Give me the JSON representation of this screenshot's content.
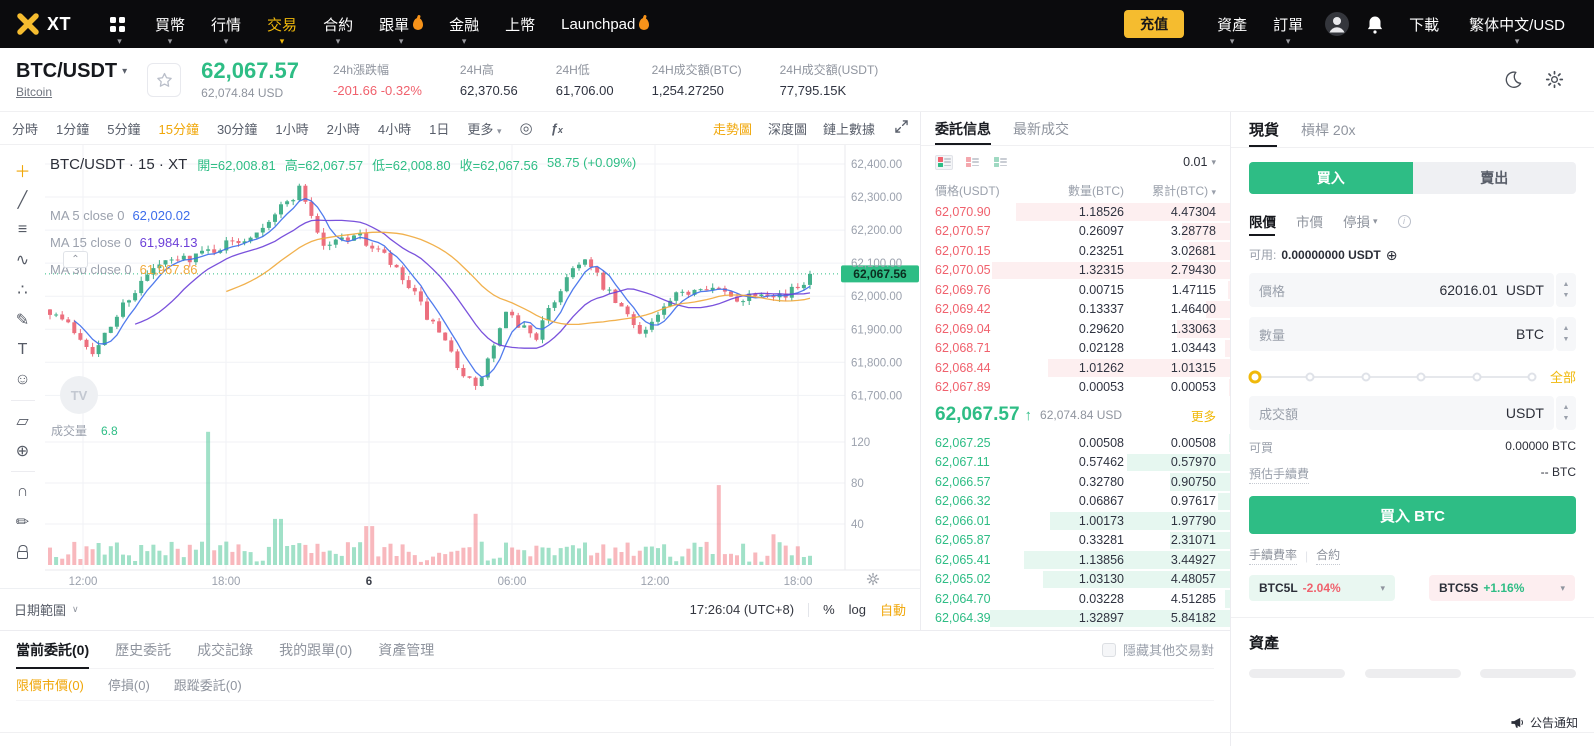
{
  "colors": {
    "up": "#2EBD85",
    "down": "#F0616D",
    "accent": "#F0B90B",
    "accent_text": "#F0A70A"
  },
  "nav": {
    "logo_text": "XT",
    "menu": [
      {
        "label": "買幣",
        "caret": true
      },
      {
        "label": "行情",
        "caret": true
      },
      {
        "label": "交易",
        "caret": true,
        "active": true
      },
      {
        "label": "合約",
        "caret": true
      },
      {
        "label": "跟單",
        "caret": true,
        "flame": true
      },
      {
        "label": "金融",
        "caret": true
      },
      {
        "label": "上幣"
      },
      {
        "label": "Launchpad",
        "flame": true
      }
    ],
    "deposit_label": "充值",
    "right_menu": [
      {
        "label": "資產",
        "caret": true
      },
      {
        "label": "訂單",
        "caret": true
      }
    ],
    "download_label": "下載",
    "locale_label": "繁体中文/USD"
  },
  "ticker": {
    "pair": "BTC/USDT",
    "coin_name": "Bitcoin",
    "price": "62,067.57",
    "price_usd": "62,074.84 USD",
    "stats": [
      {
        "label": "24h漲跌幅",
        "value": "-201.66 -0.32%",
        "dir": "down"
      },
      {
        "label": "24H高",
        "value": "62,370.56"
      },
      {
        "label": "24H低",
        "value": "61,706.00"
      },
      {
        "label": "24H成交額(BTC)",
        "value": "1,254.27250"
      },
      {
        "label": "24H成交額(USDT)",
        "value": "77,795.15K"
      }
    ]
  },
  "chart_toolbar": {
    "intervals": [
      "分時",
      "1分鐘",
      "5分鐘",
      "15分鐘",
      "30分鐘",
      "1小時",
      "2小時",
      "4小時",
      "1日"
    ],
    "active_interval": "15分鐘",
    "more_label": "更多",
    "modes": [
      "走勢圖",
      "深度圖",
      "鏈上數據"
    ],
    "active_mode": "走勢圖"
  },
  "chart": {
    "symbol_line": "BTC/USDT · 15 · XT",
    "ohlc_parts": [
      "開=62,008.81",
      "高=62,067.57",
      "低=62,008.80",
      "收=62,067.56",
      "58.75 (+0.09%)"
    ],
    "ma": [
      {
        "label": "MA 5 close 0",
        "value": "62,020.02",
        "color": "#3D6DEB"
      },
      {
        "label": "MA 15 close 0",
        "value": "61,984.13",
        "color": "#6C3FD8"
      },
      {
        "label": "MA 30 close 0",
        "value": "61,967.86",
        "color": "#F0A93B"
      }
    ],
    "volume_label": "成交量",
    "volume_value": "6.8",
    "current_price": "62,067.56",
    "price_axis": [
      "62,400.00",
      "62,300.00",
      "62,200.00",
      "62,100.00",
      "62,000.00",
      "61,900.00",
      "61,800.00",
      "61,700.00"
    ],
    "volume_axis": [
      "120",
      "80",
      "40"
    ],
    "time_axis": [
      "12:00",
      "18:00",
      "6",
      "06:00",
      "12:00",
      "18:00"
    ],
    "keypoints": [
      [
        0.0,
        61960
      ],
      [
        0.03,
        61900
      ],
      [
        0.06,
        61830
      ],
      [
        0.1,
        61990
      ],
      [
        0.14,
        62090
      ],
      [
        0.2,
        62130
      ],
      [
        0.26,
        62180
      ],
      [
        0.31,
        62280
      ],
      [
        0.33,
        62330
      ],
      [
        0.36,
        62150
      ],
      [
        0.4,
        62190
      ],
      [
        0.44,
        62120
      ],
      [
        0.48,
        62000
      ],
      [
        0.52,
        61850
      ],
      [
        0.56,
        61715
      ],
      [
        0.6,
        61940
      ],
      [
        0.64,
        61880
      ],
      [
        0.68,
        62060
      ],
      [
        0.7,
        62120
      ],
      [
        0.74,
        61990
      ],
      [
        0.78,
        61890
      ],
      [
        0.82,
        61990
      ],
      [
        0.86,
        62040
      ],
      [
        0.9,
        61990
      ],
      [
        0.94,
        62020
      ],
      [
        0.97,
        62000
      ],
      [
        1.0,
        62067
      ]
    ],
    "vol_spikes": [
      [
        0.207,
        130
      ],
      [
        0.3,
        45
      ],
      [
        0.42,
        38
      ],
      [
        0.56,
        50
      ],
      [
        0.878,
        78
      ],
      [
        0.95,
        30
      ]
    ],
    "bottom_bar": {
      "range_label": "日期範圍",
      "time": "17:26:04 (UTC+8)",
      "percent": "%",
      "log": "log",
      "auto": "自動"
    },
    "tools": [
      "crosshair-icon",
      "trendline-icon",
      "horizontal-lines-icon",
      "xabcd-pattern-icon",
      "long-position-icon",
      "brush-icon",
      "text-icon",
      "emoji-icon",
      "|",
      "ruler-icon",
      "zoom-in-icon",
      "|",
      "magnet-icon",
      "drawing-lock-icon",
      "lock-icon"
    ],
    "watermark": "TV"
  },
  "order_book": {
    "tabs": [
      "委託信息",
      "最新成交"
    ],
    "active_tab": "委託信息",
    "precision": "0.01",
    "columns": [
      "價格(USDT)",
      "數量(BTC)",
      "累計(BTC)"
    ],
    "asks": [
      {
        "price": "62,070.90",
        "qty": "1.18526",
        "total": "4.47304",
        "depth": 0.89
      },
      {
        "price": "62,070.57",
        "qty": "0.26097",
        "total": "3.28778",
        "depth": 0.2
      },
      {
        "price": "62,070.15",
        "qty": "0.23251",
        "total": "3.02681",
        "depth": 0.17
      },
      {
        "price": "62,070.05",
        "qty": "1.32315",
        "total": "2.79430",
        "depth": 0.99
      },
      {
        "price": "62,069.76",
        "qty": "0.00715",
        "total": "1.47115",
        "depth": 0.01
      },
      {
        "price": "62,069.42",
        "qty": "0.13337",
        "total": "1.46400",
        "depth": 0.1
      },
      {
        "price": "62,069.04",
        "qty": "0.29620",
        "total": "1.33063",
        "depth": 0.22
      },
      {
        "price": "62,068.71",
        "qty": "0.02128",
        "total": "1.03443",
        "depth": 0.02
      },
      {
        "price": "62,068.44",
        "qty": "1.01262",
        "total": "1.01315",
        "depth": 0.76
      },
      {
        "price": "62,067.89",
        "qty": "0.00053",
        "total": "0.00053",
        "depth": 0.005
      }
    ],
    "mid": {
      "price": "62,067.57",
      "arrow": "↑",
      "usd": "62,074.84 USD",
      "more": "更多"
    },
    "bids": [
      {
        "price": "62,067.25",
        "qty": "0.00508",
        "total": "0.00508",
        "depth": 0.005
      },
      {
        "price": "62,067.11",
        "qty": "0.57462",
        "total": "0.57970",
        "depth": 0.43
      },
      {
        "price": "62,066.57",
        "qty": "0.32780",
        "total": "0.90750",
        "depth": 0.25
      },
      {
        "price": "62,066.32",
        "qty": "0.06867",
        "total": "0.97617",
        "depth": 0.05
      },
      {
        "price": "62,066.01",
        "qty": "1.00173",
        "total": "1.97790",
        "depth": 0.75
      },
      {
        "price": "62,065.87",
        "qty": "0.33281",
        "total": "2.31071",
        "depth": 0.25
      },
      {
        "price": "62,065.41",
        "qty": "1.13856",
        "total": "3.44927",
        "depth": 0.86
      },
      {
        "price": "62,065.02",
        "qty": "1.03130",
        "total": "4.48057",
        "depth": 0.78
      },
      {
        "price": "62,064.70",
        "qty": "0.03228",
        "total": "4.51285",
        "depth": 0.02
      },
      {
        "price": "62,064.39",
        "qty": "1.32897",
        "total": "5.84182",
        "depth": 1.0
      }
    ]
  },
  "trade_panel": {
    "tabs": [
      "現貨",
      "槓桿 20x"
    ],
    "active_tab": "現貨",
    "buy_label": "買入",
    "sell_label": "賣出",
    "order_types": [
      "限價",
      "市價",
      "停損"
    ],
    "active_type": "限價",
    "available_label": "可用:",
    "available_value": "0.00000000 USDT",
    "price_label": "價格",
    "price_value": "62016.01",
    "price_unit": "USDT",
    "qty_label": "數量",
    "qty_unit": "BTC",
    "all_label": "全部",
    "amount_label": "成交額",
    "amount_unit": "USDT",
    "can_buy_label": "可買",
    "can_buy_value": "0.00000 BTC",
    "fee_label": "預估手續費",
    "fee_value": "-- BTC",
    "buy_cta": "買入 BTC",
    "fee_rate_label": "手續費率",
    "contract_label": "合約",
    "etf": [
      {
        "name": "BTC5L",
        "change": "-2.04%",
        "dir": "down"
      },
      {
        "name": "BTC5S",
        "change": "+1.16%",
        "dir": "up"
      }
    ],
    "assets_title": "資產"
  },
  "bottom_panel": {
    "tabs": [
      "當前委託(0)",
      "歷史委託",
      "成交記錄",
      "我的跟單(0)",
      "資產管理"
    ],
    "active_tab": "當前委託(0)",
    "hide_label": "隱藏其他交易對",
    "subtabs": [
      "限價市價(0)",
      "停損(0)",
      "跟蹤委託(0)"
    ],
    "active_subtab": "限價市價(0)"
  },
  "footer": {
    "announcement": "公告通知"
  }
}
